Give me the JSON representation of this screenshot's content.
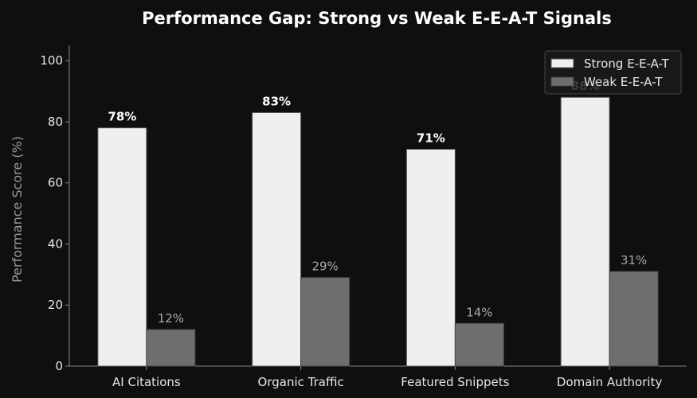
{
  "chart_data": {
    "type": "bar",
    "title": "Performance Gap: Strong vs Weak E-E-A-T Signals",
    "xlabel": "",
    "ylabel": "Performance Score (%)",
    "categories": [
      "AI Citations",
      "Organic Traffic",
      "Featured Snippets",
      "Domain Authority"
    ],
    "series": [
      {
        "name": "Strong E-E-A-T",
        "values": [
          78,
          83,
          71,
          88
        ],
        "labels": [
          "78%",
          "83%",
          "71%",
          "88%"
        ]
      },
      {
        "name": "Weak E-E-A-T",
        "values": [
          12,
          29,
          14,
          31
        ],
        "labels": [
          "12%",
          "29%",
          "14%",
          "31%"
        ]
      }
    ],
    "ylim": [
      0,
      105
    ],
    "yticks": [
      0,
      20,
      40,
      60,
      80,
      100
    ],
    "grid": false,
    "legend": "top-right",
    "colors": {
      "background": "#0f0f0f",
      "strong": "#efefef",
      "weak": "#6e6e6e",
      "strong_edge": "#555555",
      "weak_edge": "#444444",
      "axis": "#8a8a8a"
    }
  }
}
